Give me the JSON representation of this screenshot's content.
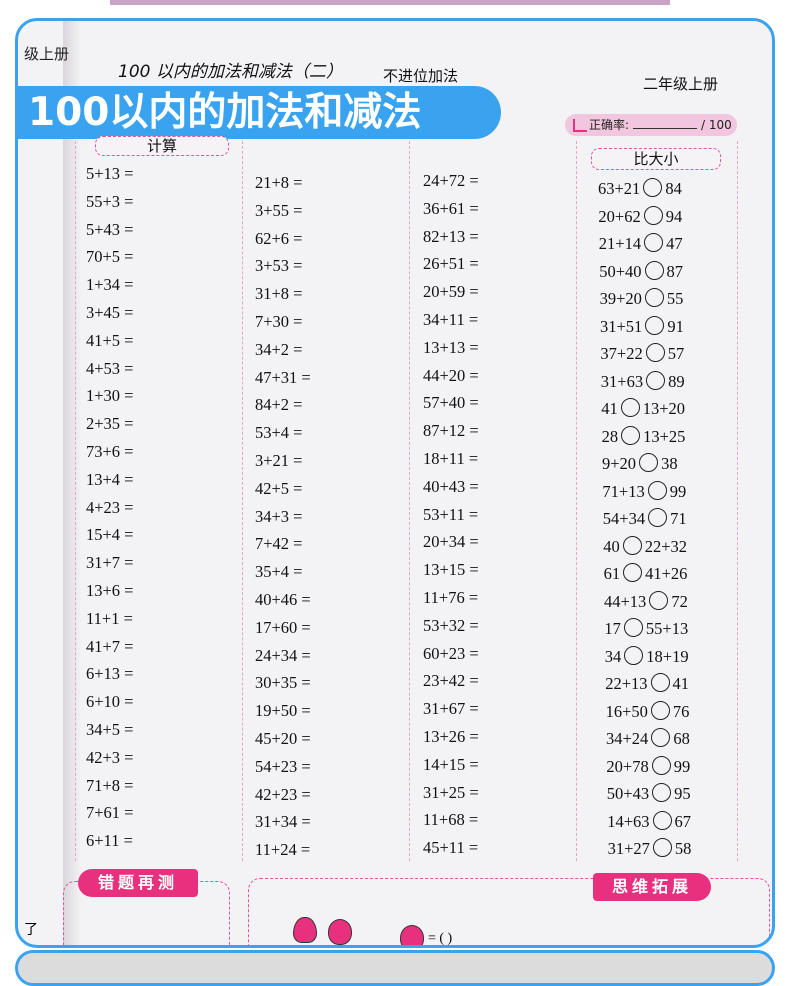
{
  "header": {
    "side_title": "级上册",
    "lesson_title": "100 以内的加法和减法（二）",
    "subtitle": "不进位加法",
    "grade": "二年级上册"
  },
  "banner": {
    "title": "100以内的加法和减法"
  },
  "accuracy": {
    "label": "正确率:",
    "total": "/ 100"
  },
  "sections": {
    "calc": "计算",
    "compare": "比大小",
    "retest": "错题再测",
    "extend": "思维拓展"
  },
  "columns": [
    [
      "5+13 =",
      "55+3 =",
      "5+43 =",
      "70+5 =",
      "1+34 =",
      "3+45 =",
      "41+5 =",
      "4+53 =",
      "1+30 =",
      "2+35 =",
      "73+6 =",
      "13+4 =",
      "4+23 =",
      "15+4 =",
      "31+7 =",
      "13+6 =",
      "11+1 =",
      "41+7 =",
      "6+13 =",
      "6+10 =",
      "34+5 =",
      "42+3 =",
      "71+8 =",
      "7+61 =",
      "6+11 ="
    ],
    [
      "21+8 =",
      "3+55 =",
      "62+6 =",
      "3+53 =",
      "31+8 =",
      "7+30 =",
      "34+2 =",
      "47+31 =",
      "84+2 =",
      "53+4 =",
      "3+21 =",
      "42+5 =",
      "34+3 =",
      "7+42 =",
      "35+4 =",
      "40+46 =",
      "17+60 =",
      "24+34 =",
      "30+35 =",
      "19+50 =",
      "45+20 =",
      "54+23 =",
      "42+23 =",
      "31+34 =",
      "11+24 ="
    ],
    [
      "24+72 =",
      "36+61 =",
      "82+13 =",
      "26+51 =",
      "20+59 =",
      "34+11 =",
      "13+13 =",
      "44+20 =",
      "57+40 =",
      "87+12 =",
      "18+11 =",
      "40+43 =",
      "53+11 =",
      "20+34 =",
      "13+15 =",
      "11+76 =",
      "53+32 =",
      "60+23 =",
      "23+42 =",
      "31+67 =",
      "13+26 =",
      "14+15 =",
      "31+25 =",
      "11+68 =",
      "45+11 ="
    ]
  ],
  "compare": [
    [
      "63+21",
      "84"
    ],
    [
      "20+62",
      "94"
    ],
    [
      "21+14",
      "47"
    ],
    [
      "50+40",
      "87"
    ],
    [
      "39+20",
      "55"
    ],
    [
      "31+51",
      "91"
    ],
    [
      "37+22",
      "57"
    ],
    [
      "31+63",
      "89"
    ],
    [
      "41",
      "13+20"
    ],
    [
      "28",
      "13+25"
    ],
    [
      "9+20",
      "38"
    ],
    [
      "71+13",
      "99"
    ],
    [
      "54+34",
      "71"
    ],
    [
      "40",
      "22+32"
    ],
    [
      "61",
      "41+26"
    ],
    [
      "44+13",
      "72"
    ],
    [
      "17",
      "55+13"
    ],
    [
      "34",
      "18+19"
    ],
    [
      "22+13",
      "41"
    ],
    [
      "16+50",
      "76"
    ],
    [
      "34+24",
      "68"
    ],
    [
      "20+78",
      "99"
    ],
    [
      "50+43",
      "95"
    ],
    [
      "14+63",
      "67"
    ],
    [
      "31+27",
      "58"
    ]
  ],
  "bottom": {
    "side_char": "了",
    "answer": "= (        )"
  },
  "colors": {
    "frame": "#3aa3f0",
    "accent": "#e8317e"
  }
}
